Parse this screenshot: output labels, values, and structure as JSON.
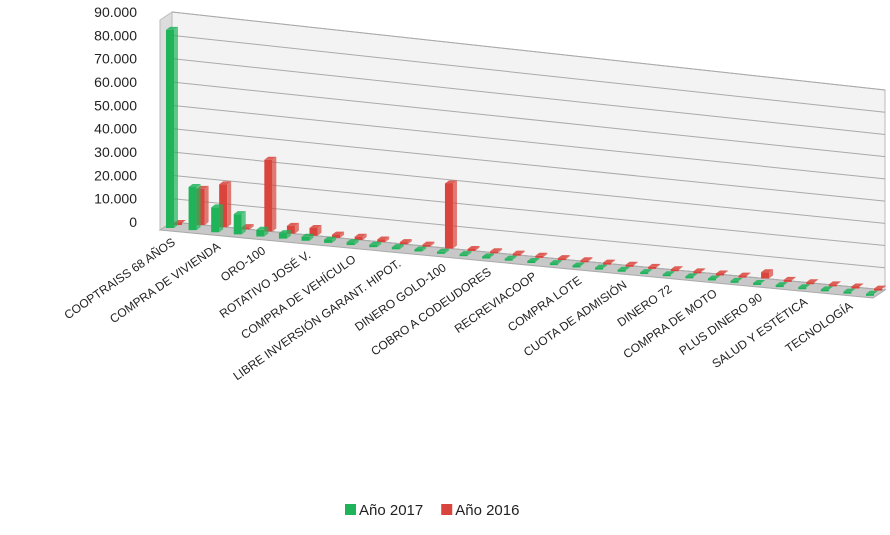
{
  "chart_data": {
    "type": "bar3d",
    "categories": [
      "COOPTRAISS 68 AÑOS",
      null,
      "COMPRA DE VIVIENDA",
      null,
      "ORO-100",
      null,
      "ROTATIVO JOSÉ V.",
      null,
      "COMPRA DE VEHÍCULO",
      null,
      "LIBRE INVERSIÓN GARANT. HIPOT.",
      null,
      "DINERO GOLD-100",
      null,
      "COBRO A CODEUDORES",
      null,
      "RECREVIACOOP",
      null,
      "COMPRA LOTE",
      null,
      "CUOTA DE ADMISIÓN",
      null,
      "DINERO 72",
      null,
      "COMPRA DE MOTO",
      null,
      "PLUS DINERO 90",
      null,
      "SALUD Y ESTÉTICA",
      null,
      "TECNOLOGÍA",
      null
    ],
    "series": [
      {
        "name": "Año 2017",
        "color": "#1fb35a",
        "values": [
          87000,
          19000,
          11000,
          9000,
          3000,
          2500,
          1800,
          1500,
          1300,
          1100,
          1000,
          900,
          800,
          700,
          600,
          600,
          500,
          500,
          400,
          400,
          400,
          300,
          300,
          300,
          300,
          200,
          200,
          200,
          200,
          200,
          100,
          100
        ]
      },
      {
        "name": "Año 2016",
        "color": "#d9443c",
        "values": [
          0,
          16000,
          19000,
          1000,
          32000,
          3500,
          3500,
          1500,
          1500,
          1200,
          1000,
          800,
          30000,
          800,
          700,
          600,
          600,
          500,
          500,
          400,
          400,
          400,
          300,
          300,
          300,
          300,
          3000,
          300,
          200,
          200,
          200,
          200
        ]
      }
    ],
    "ylim": [
      0,
      90000
    ],
    "yticks": [
      0,
      {
        "value": 10000,
        "label": "10.000"
      },
      {
        "value": 20000,
        "label": "20.000"
      },
      {
        "value": 30000,
        "label": "30.000"
      },
      {
        "value": 40000,
        "label": "40.000"
      },
      {
        "value": 50000,
        "label": "50.000"
      },
      {
        "value": 60000,
        "label": "60.000"
      },
      {
        "value": 70000,
        "label": "70.000"
      },
      {
        "value": 80000,
        "label": "80.000"
      },
      {
        "value": 90000,
        "label": "90.000"
      }
    ],
    "grid": true,
    "legend": "bottom"
  }
}
